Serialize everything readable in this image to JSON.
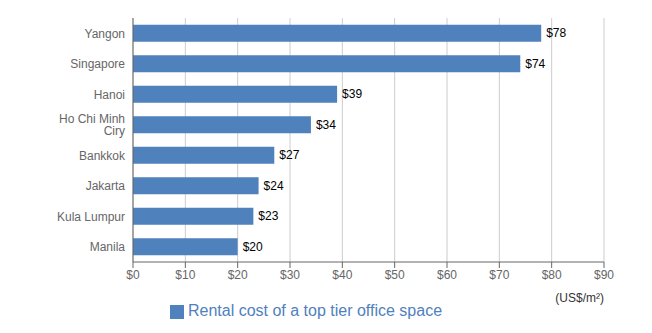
{
  "chart_data": {
    "type": "bar",
    "orientation": "horizontal",
    "categories": [
      "Manila",
      "Kula Lumpur",
      "Jakarta",
      "Bankkok",
      "Ho Chi Minh Ciry",
      "Hanoi",
      "Singapore",
      "Yangon"
    ],
    "series": [
      {
        "name": "Rental cost of a top tier office space",
        "color": "#4f81bd",
        "values": [
          20,
          23,
          24,
          27,
          34,
          39,
          74,
          78
        ],
        "value_labels": [
          "$20",
          "$23",
          "$24",
          "$27",
          "$34",
          "$39",
          "$74",
          "$78"
        ]
      }
    ],
    "xlim": [
      0,
      90
    ],
    "xticks": [
      {
        "value": 0,
        "label": "$0"
      },
      {
        "value": 10,
        "label": "$10"
      },
      {
        "value": 20,
        "label": "$20"
      },
      {
        "value": 30,
        "label": "$30"
      },
      {
        "value": 40,
        "label": "$40"
      },
      {
        "value": 50,
        "label": "$50"
      },
      {
        "value": 60,
        "label": "$60"
      },
      {
        "value": 70,
        "label": "$70"
      },
      {
        "value": 80,
        "label": "$80"
      },
      {
        "value": 90,
        "label": "$90"
      }
    ],
    "annotations": [
      "(US$/m²)"
    ],
    "grid": true,
    "legend": "bottom",
    "data_labels": true
  }
}
